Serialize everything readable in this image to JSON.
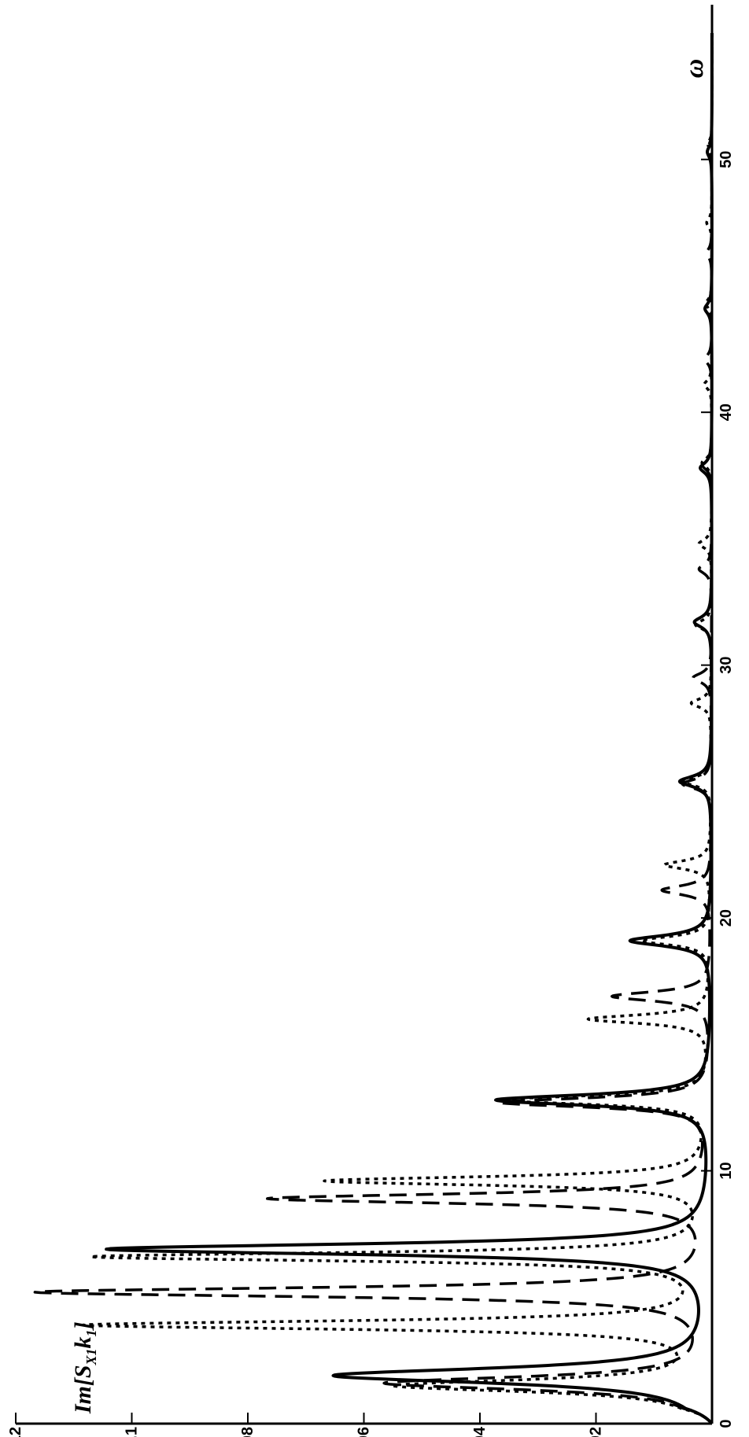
{
  "chart_data": {
    "type": "line",
    "orientation": "rotated-90-clockwise",
    "xlabel": "ω",
    "ylabel": {
      "prefix": "Im[",
      "main": "S",
      "sub1": "X1",
      "mid": "k",
      "sub2": "1",
      "suffix": "]"
    },
    "xlim": [
      0,
      55
    ],
    "ylim": [
      0,
      0.12
    ],
    "x_ticks": [
      "0",
      "10",
      "20",
      "30",
      "40",
      "50"
    ],
    "y_ticks": [
      "0.02",
      "0.04",
      "0.06",
      "0.08",
      "0.1",
      "0.12"
    ],
    "grid": false,
    "series": [
      {
        "style": "solid",
        "color": "#000000",
        "peaks": [
          {
            "x": 1.9,
            "y": 0.065,
            "w": 0.35
          },
          {
            "x": 6.9,
            "y": 0.104,
            "w": 0.25
          },
          {
            "x": 12.8,
            "y": 0.037,
            "w": 0.25
          },
          {
            "x": 19.1,
            "y": 0.014,
            "w": 0.25
          },
          {
            "x": 25.4,
            "y": 0.0055,
            "w": 0.25
          },
          {
            "x": 31.7,
            "y": 0.003,
            "w": 0.25
          },
          {
            "x": 37.8,
            "y": 0.002,
            "w": 0.25
          },
          {
            "x": 44.1,
            "y": 0.0012,
            "w": 0.25
          },
          {
            "x": 50.3,
            "y": 0.0008,
            "w": 0.25
          }
        ]
      },
      {
        "style": "dashed",
        "color": "#000000",
        "peaks": [
          {
            "x": 1.6,
            "y": 0.056,
            "w": 0.3
          },
          {
            "x": 5.2,
            "y": 0.116,
            "w": 0.22
          },
          {
            "x": 8.9,
            "y": 0.076,
            "w": 0.22
          },
          {
            "x": 12.7,
            "y": 0.036,
            "w": 0.22
          },
          {
            "x": 16.9,
            "y": 0.017,
            "w": 0.22
          },
          {
            "x": 21.1,
            "y": 0.0085,
            "w": 0.22
          },
          {
            "x": 25.3,
            "y": 0.005,
            "w": 0.22
          },
          {
            "x": 29.5,
            "y": 0.0032,
            "w": 0.22
          },
          {
            "x": 33.8,
            "y": 0.0022,
            "w": 0.22
          },
          {
            "x": 37.9,
            "y": 0.0016,
            "w": 0.22
          },
          {
            "x": 42.1,
            "y": 0.0012,
            "w": 0.22
          },
          {
            "x": 46.3,
            "y": 0.0009,
            "w": 0.22
          },
          {
            "x": 50.5,
            "y": 0.0006,
            "w": 0.22
          }
        ]
      },
      {
        "style": "dotted",
        "color": "#000000",
        "peaks": [
          {
            "x": 1.5,
            "y": 0.054,
            "w": 0.28
          },
          {
            "x": 3.9,
            "y": 0.107,
            "w": 0.2
          },
          {
            "x": 6.6,
            "y": 0.106,
            "w": 0.2
          },
          {
            "x": 9.6,
            "y": 0.066,
            "w": 0.2
          },
          {
            "x": 12.8,
            "y": 0.036,
            "w": 0.2
          },
          {
            "x": 16.0,
            "y": 0.021,
            "w": 0.2
          },
          {
            "x": 19.1,
            "y": 0.012,
            "w": 0.2
          },
          {
            "x": 22.1,
            "y": 0.008,
            "w": 0.2
          },
          {
            "x": 25.4,
            "y": 0.005,
            "w": 0.2
          },
          {
            "x": 28.5,
            "y": 0.0035,
            "w": 0.2
          },
          {
            "x": 31.6,
            "y": 0.0028,
            "w": 0.2
          },
          {
            "x": 34.8,
            "y": 0.0022,
            "w": 0.2
          },
          {
            "x": 38.0,
            "y": 0.0017,
            "w": 0.2
          },
          {
            "x": 41.1,
            "y": 0.0013,
            "w": 0.2
          },
          {
            "x": 44.3,
            "y": 0.0011,
            "w": 0.2
          },
          {
            "x": 47.5,
            "y": 0.0009,
            "w": 0.2
          },
          {
            "x": 50.6,
            "y": 0.0007,
            "w": 0.2
          }
        ]
      }
    ]
  }
}
